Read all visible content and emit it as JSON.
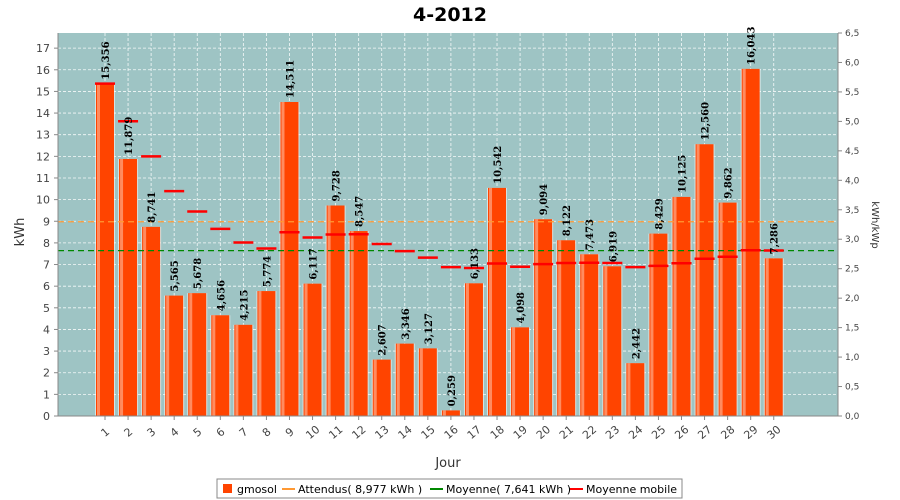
{
  "chart_data": {
    "type": "bar",
    "title": "4-2012",
    "xlabel": "Jour",
    "ylabel": "kWh",
    "y2label": "kWh/kWp",
    "ylim": [
      0,
      17.7
    ],
    "y2lim": [
      0,
      6.5
    ],
    "y_ticks": [
      "0",
      "1",
      "2",
      "3",
      "4",
      "5",
      "6",
      "7",
      "8",
      "9",
      "10",
      "11",
      "12",
      "13",
      "14",
      "15",
      "16",
      "17"
    ],
    "y2_ticks": [
      "0,0",
      "0,5",
      "1,0",
      "1,5",
      "2,0",
      "2,5",
      "3,0",
      "3,5",
      "4,0",
      "4,5",
      "5,0",
      "5,5",
      "6,0",
      "6,5"
    ],
    "categories": [
      "1",
      "2",
      "3",
      "4",
      "5",
      "6",
      "7",
      "8",
      "9",
      "10",
      "11",
      "12",
      "13",
      "14",
      "15",
      "16",
      "17",
      "18",
      "19",
      "20",
      "21",
      "22",
      "23",
      "24",
      "25",
      "26",
      "27",
      "28",
      "29",
      "30"
    ],
    "grid": true,
    "legend_position": "bottom",
    "series": [
      {
        "name": "gmosol",
        "type": "bar",
        "color": "#ff4400",
        "values": [
          15.356,
          11.879,
          8.741,
          5.565,
          5.678,
          4.656,
          4.215,
          5.774,
          14.511,
          6.117,
          9.728,
          8.547,
          2.607,
          3.346,
          3.127,
          0.259,
          6.133,
          10.542,
          4.098,
          9.094,
          8.122,
          7.473,
          6.919,
          2.442,
          8.429,
          10.125,
          12.56,
          9.862,
          16.043,
          7.286
        ],
        "labels": [
          "15,356",
          "11,879",
          "8,741",
          "5,565",
          "5,678",
          "4,656",
          "4,215",
          "5,774",
          "14,511",
          "6,117",
          "9,728",
          "8,547",
          "2,607",
          "3,346",
          "3,127",
          "0,259",
          "6,133",
          "10,542",
          "4,098",
          "9,094",
          "8,122",
          "7,473",
          "6,919",
          "2,442",
          "8,429",
          "10,125",
          "12,560",
          "9,862",
          "16,043",
          "7,286"
        ]
      },
      {
        "name": "Attendus( 8,977 kWh )",
        "type": "line",
        "color": "#ff9933",
        "value": 8.977
      },
      {
        "name": "Moyenne( 7,641 kWh )",
        "type": "line",
        "color": "#008800",
        "value": 7.641
      },
      {
        "name": "Moyenne mobile",
        "type": "marker",
        "color": "#ff0000",
        "values": [
          15.36,
          13.62,
          12.0,
          10.39,
          9.45,
          8.65,
          8.02,
          7.74,
          8.49,
          8.25,
          8.39,
          8.4,
          7.95,
          7.62,
          7.32,
          6.88,
          6.84,
          7.05,
          6.9,
          7.02,
          7.07,
          7.08,
          7.07,
          6.88,
          6.94,
          7.06,
          7.27,
          7.36,
          7.66,
          7.65
        ]
      }
    ]
  },
  "legend": {
    "items": [
      {
        "label": "gmosol",
        "color": "#ff4400",
        "kind": "box"
      },
      {
        "label": "Attendus( 8,977 kWh )",
        "color": "#ff9933",
        "kind": "line"
      },
      {
        "label": "Moyenne( 7,641 kWh )",
        "color": "#008800",
        "kind": "line"
      },
      {
        "label": "Moyenne mobile",
        "color": "#ff0000",
        "kind": "line"
      }
    ]
  },
  "colors": {
    "plot_background": "#9ec4c4",
    "bar_fill": "#ff4400",
    "bar_highlight": "#ffaa88"
  }
}
